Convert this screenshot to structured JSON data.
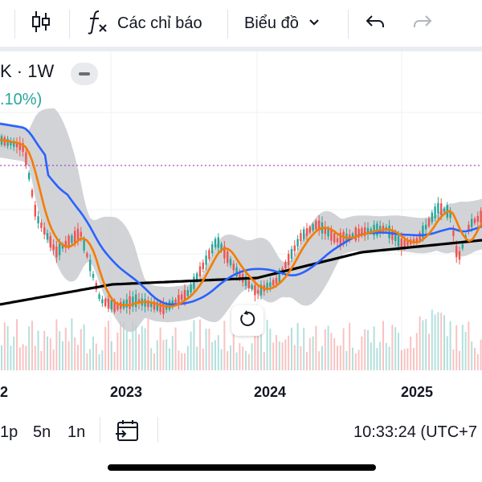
{
  "toolbar": {
    "indicators_label": "Các chỉ báo",
    "chart_type_label": "Biểu đồ"
  },
  "legend": {
    "symbol_interval": "K · 1W",
    "change_percent": ".10%)"
  },
  "x_axis": {
    "labels": [
      "2",
      "2023",
      "2024",
      "2025"
    ]
  },
  "bottom_bar": {
    "periods": [
      "1p",
      "5n",
      "1n"
    ],
    "clock": "10:33:24 (UTC+7"
  },
  "colors": {
    "up": "#26a69a",
    "down": "#ef5350",
    "ema_fast": "#f57c00",
    "ma_mid": "#2962ff",
    "ma_long": "#000000",
    "band_fill": "#c7c8cc",
    "price_line": "#9c27b0"
  },
  "icons": [
    "candles-icon",
    "fx-icon",
    "chevron-down-icon",
    "undo-icon",
    "redo-icon",
    "reset-icon",
    "date-range-icon"
  ],
  "chart_data": {
    "type": "candlestick",
    "interval": "1W",
    "indicators": [
      "Bollinger Bands",
      "EMA",
      "MA",
      "MA long"
    ],
    "x_ticks": [
      "2",
      "2023",
      "2024",
      "2025"
    ]
  }
}
